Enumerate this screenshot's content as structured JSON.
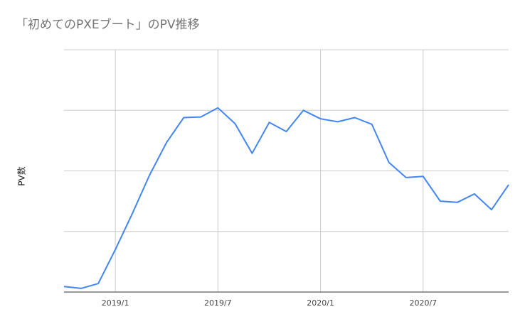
{
  "chart_data": {
    "type": "line",
    "title": "「初めてのPXEブート」のPV推移",
    "xlabel": "",
    "ylabel": "PV数",
    "x_tick_labels": [
      "2019/1",
      "2019/7",
      "2020/1",
      "2020/7"
    ],
    "x": [
      "2018/10",
      "2018/11",
      "2018/12",
      "2019/1",
      "2019/2",
      "2019/3",
      "2019/4",
      "2019/5",
      "2019/6",
      "2019/7",
      "2019/8",
      "2019/9",
      "2019/10",
      "2019/11",
      "2019/12",
      "2020/1",
      "2020/2",
      "2020/3",
      "2020/4",
      "2020/5",
      "2020/6",
      "2020/7",
      "2020/8",
      "2020/9",
      "2020/10",
      "2020/11",
      "2020/12"
    ],
    "series": [
      {
        "values": [
          0.09,
          0.06,
          0.14,
          0.7,
          1.3,
          1.93,
          2.47,
          2.88,
          2.89,
          3.04,
          2.78,
          2.29,
          2.8,
          2.65,
          3.0,
          2.86,
          2.81,
          2.88,
          2.77,
          2.14,
          1.89,
          1.91,
          1.5,
          1.48,
          1.62,
          1.36,
          1.77
        ],
        "color": "#4285f4"
      }
    ],
    "ylim": [
      0,
      4
    ],
    "gridlines_y": 4,
    "grid": true,
    "y_tick_labels_shown": false
  }
}
